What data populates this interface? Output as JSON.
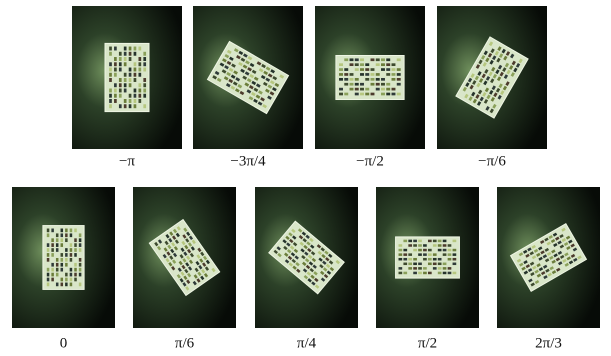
{
  "panels": {
    "top": [
      {
        "caption": "−π"
      },
      {
        "caption": "−3π/4"
      },
      {
        "caption": "−π/2"
      },
      {
        "caption": "−π/6"
      }
    ],
    "bottom": [
      {
        "caption": "0"
      },
      {
        "caption": "π/6"
      },
      {
        "caption": "π/4"
      },
      {
        "caption": "π/2"
      },
      {
        "caption": "2π/3"
      }
    ]
  }
}
